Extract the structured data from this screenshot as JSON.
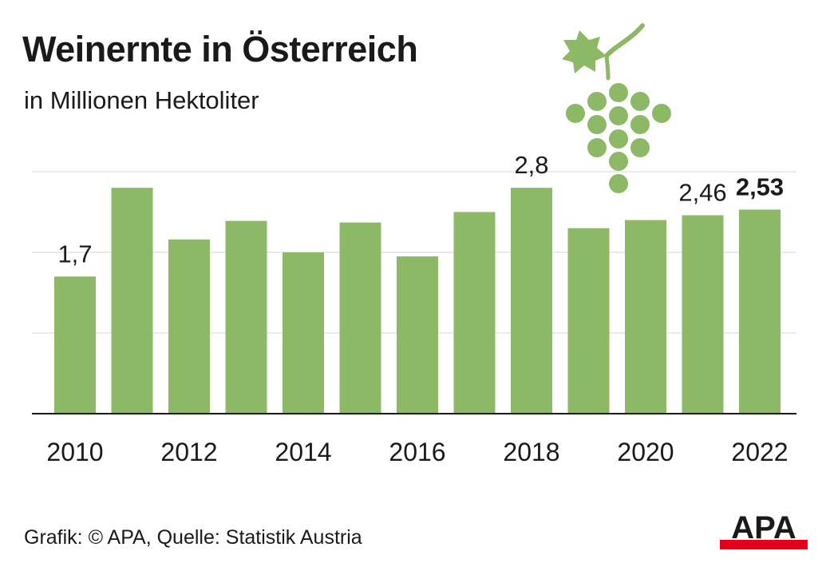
{
  "header": {
    "title": "Weinernte in Österreich",
    "subtitle": "in Millionen Hektoliter"
  },
  "footer": {
    "credit": "Grafik: © APA, Quelle: Statistik Austria",
    "logo_text": "APA"
  },
  "illustration": {
    "icon": "grape-cluster-icon"
  },
  "colors": {
    "bar": "#8db866",
    "grape": "#8db866",
    "gridline": "#d4d4d4",
    "axis": "#1a1a1a",
    "logo_text": "#1a1a1a",
    "logo_accent": "#e3001b"
  },
  "chart_data": {
    "type": "bar",
    "title": "Weinernte in Österreich",
    "subtitle": "in Millionen Hektoliter",
    "categories": [
      "2010",
      "2011",
      "2012",
      "2013",
      "2014",
      "2015",
      "2016",
      "2017",
      "2018",
      "2019",
      "2020",
      "2021",
      "2022"
    ],
    "values": [
      1.7,
      2.8,
      2.16,
      2.39,
      2.0,
      2.37,
      1.95,
      2.5,
      2.8,
      2.3,
      2.4,
      2.46,
      2.53
    ],
    "tick_labels": [
      "2010",
      "2012",
      "2014",
      "2016",
      "2018",
      "2020",
      "2022"
    ],
    "data_labels": [
      {
        "category": "2010",
        "text": "1,7",
        "bold": false
      },
      {
        "category": "2018",
        "text": "2,8",
        "bold": false
      },
      {
        "category": "2021",
        "text": "2,46",
        "bold": false
      },
      {
        "category": "2022",
        "text": "2,53",
        "bold": true
      }
    ],
    "ylim": [
      0,
      3.0
    ],
    "gridlines": [
      1,
      2,
      3
    ],
    "grid": true,
    "legend": "none"
  }
}
